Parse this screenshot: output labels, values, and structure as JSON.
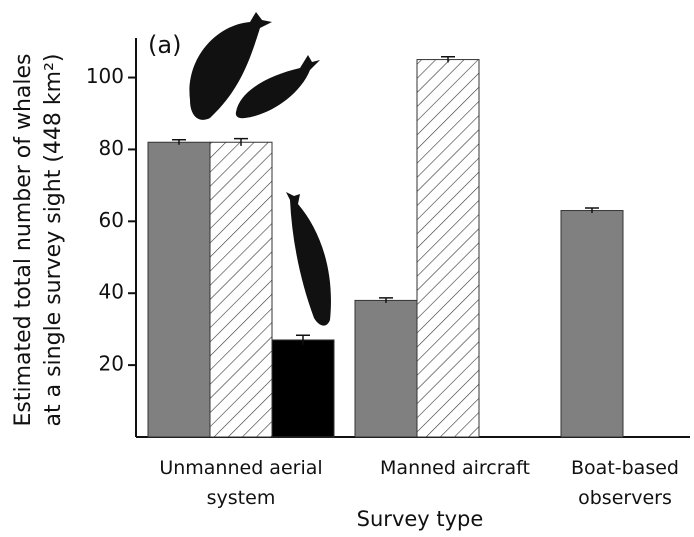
{
  "chart_data": {
    "type": "bar",
    "panel_label": "(a)",
    "y_label": [
      "Estimated total number of whales",
      "at a single survey sight (448 km²)"
    ],
    "x_label": "Survey type",
    "categories": [
      "Unmanned aerial system",
      "Manned aircraft",
      "Boat-based observers"
    ],
    "series": [
      {
        "color": "#808080",
        "pattern": "solid",
        "values": [
          82,
          38,
          63
        ],
        "errors": [
          0.7,
          0.7,
          0.7
        ]
      },
      {
        "color": "#ffffff",
        "pattern": "hatch",
        "values": [
          82,
          105,
          null
        ],
        "errors": [
          1,
          0.8,
          null
        ]
      },
      {
        "color": "#000000",
        "pattern": "solid",
        "values": [
          27,
          null,
          null
        ],
        "errors": [
          1.3,
          null,
          null
        ]
      }
    ],
    "ylim": [
      0,
      111
    ],
    "yticks": [
      20,
      40,
      60,
      80,
      100
    ],
    "grid": false
  }
}
